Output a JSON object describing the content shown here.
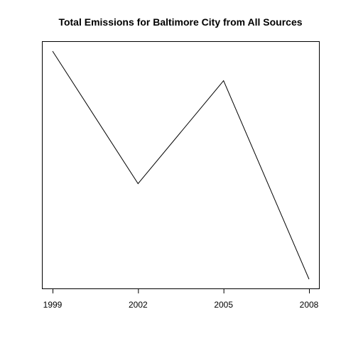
{
  "chart_data": {
    "type": "line",
    "title": "Total Emissions for Baltimore City from All Sources",
    "xlabel": "",
    "ylabel": "",
    "x": [
      1999,
      2002,
      2005,
      2008
    ],
    "x_tick_labels": [
      "1999",
      "2002",
      "2005",
      "2008"
    ],
    "series": [
      {
        "values": [
          3274.18,
          2453.92,
          3091.35,
          1862.28
        ]
      }
    ],
    "y_axis_shown": false,
    "grid": false,
    "legend": "none",
    "line_color": "#000000"
  }
}
